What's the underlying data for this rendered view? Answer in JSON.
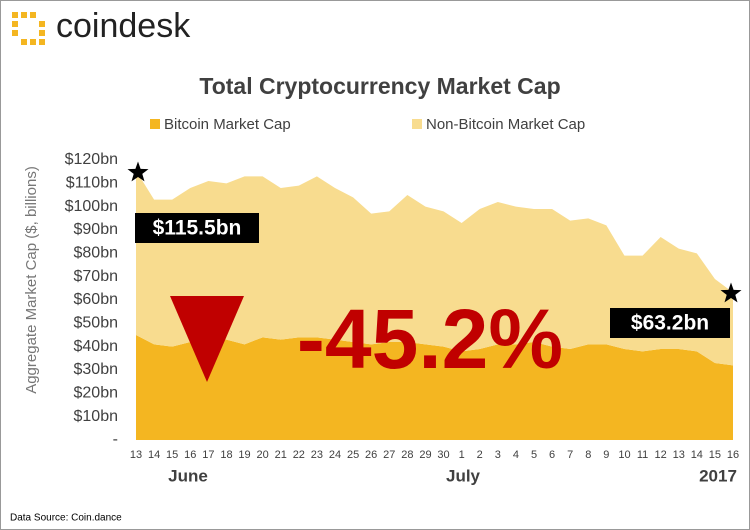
{
  "logo": "coindesk",
  "source": "Data Source: Coin.dance",
  "chart_data": {
    "type": "area",
    "stacked": true,
    "title": "Total Cryptocurrency Market Cap",
    "ylabel": "Aggregate Market Cap ($, billions)",
    "categories": [
      "13",
      "14",
      "15",
      "16",
      "17",
      "18",
      "19",
      "20",
      "21",
      "22",
      "23",
      "24",
      "25",
      "26",
      "27",
      "28",
      "29",
      "30",
      "1",
      "2",
      "3",
      "4",
      "5",
      "6",
      "7",
      "8",
      "9",
      "10",
      "11",
      "12",
      "13",
      "14",
      "15",
      "16"
    ],
    "month_labels": [
      "June",
      "July",
      "2017"
    ],
    "series": [
      {
        "name": "Bitcoin Market Cap",
        "color": "#f4b621",
        "values": [
          45,
          41,
          40,
          42,
          44,
          43,
          41,
          44,
          43,
          44,
          44,
          43,
          42,
          41,
          42,
          42,
          41,
          40,
          38,
          39,
          41,
          41,
          42,
          40,
          39,
          41,
          41,
          39,
          38,
          39,
          39,
          38,
          33,
          32
        ]
      },
      {
        "name": "Non-Bitcoin Market Cap",
        "color": "#f8dc8f",
        "values": [
          70.5,
          62,
          63,
          66,
          67,
          67,
          72,
          69,
          65,
          65,
          69,
          65,
          62,
          56,
          56,
          63,
          59,
          58,
          55,
          60,
          61,
          59,
          57,
          59,
          55,
          54,
          51,
          40,
          41,
          48,
          43,
          42,
          36,
          31.2
        ]
      }
    ],
    "ylim": [
      0,
      120
    ],
    "yticks": [
      {
        "value": 0,
        "label": "-"
      },
      {
        "value": 10,
        "label": "$10bn"
      },
      {
        "value": 20,
        "label": "$20bn"
      },
      {
        "value": 30,
        "label": "$30bn"
      },
      {
        "value": 40,
        "label": "$40bn"
      },
      {
        "value": 50,
        "label": "$50bn"
      },
      {
        "value": 60,
        "label": "$60bn"
      },
      {
        "value": 70,
        "label": "$70bn"
      },
      {
        "value": 80,
        "label": "$80bn"
      },
      {
        "value": 90,
        "label": "$90bn"
      },
      {
        "value": 100,
        "label": "$100bn"
      },
      {
        "value": 110,
        "label": "$110bn"
      },
      {
        "value": 120,
        "label": "$120bn"
      }
    ],
    "annotations": [
      "$115.5bn",
      "$63.2bn",
      "-45.2%"
    ]
  }
}
